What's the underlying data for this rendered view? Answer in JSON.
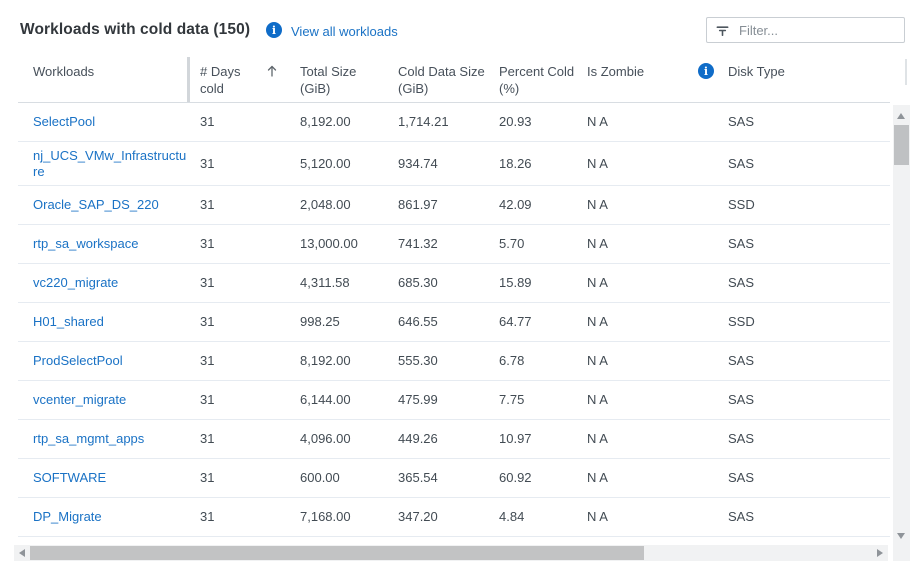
{
  "page": {
    "title": "Workloads with cold data (150)",
    "title_info_icon": "info-icon",
    "view_all_link": "View all workloads",
    "filter": {
      "placeholder": "Filter...",
      "icon": "filter-funnel-icon"
    }
  },
  "table": {
    "columns": [
      {
        "id": "workloads",
        "label": "Workloads"
      },
      {
        "id": "days_cold",
        "label": "# Days cold",
        "sorted": "ascending",
        "sort_icon": "arrow-up-icon"
      },
      {
        "id": "total_size",
        "label": "Total Size (GiB)"
      },
      {
        "id": "cold_data_size",
        "label": "Cold Data Size (GiB)"
      },
      {
        "id": "percent_cold",
        "label": "Percent Cold (%)"
      },
      {
        "id": "is_zombie",
        "label": "Is Zombie",
        "info_icon": "info-icon"
      },
      {
        "id": "disk_type",
        "label": "Disk Type"
      }
    ],
    "rows": [
      {
        "workload": "SelectPool",
        "days_cold": "31",
        "total_size": "8,192.00",
        "cold_data_size": "1,714.21",
        "percent_cold": "20.93",
        "is_zombie": "N A",
        "disk_type": "SAS"
      },
      {
        "workload": "nj_UCS_VMw_Infrastructure",
        "days_cold": "31",
        "total_size": "5,120.00",
        "cold_data_size": "934.74",
        "percent_cold": "18.26",
        "is_zombie": "N A",
        "disk_type": "SAS"
      },
      {
        "workload": "Oracle_SAP_DS_220",
        "days_cold": "31",
        "total_size": "2,048.00",
        "cold_data_size": "861.97",
        "percent_cold": "42.09",
        "is_zombie": "N A",
        "disk_type": "SSD"
      },
      {
        "workload": "rtp_sa_workspace",
        "days_cold": "31",
        "total_size": "13,000.00",
        "cold_data_size": "741.32",
        "percent_cold": "5.70",
        "is_zombie": "N A",
        "disk_type": "SAS"
      },
      {
        "workload": "vc220_migrate",
        "days_cold": "31",
        "total_size": "4,311.58",
        "cold_data_size": "685.30",
        "percent_cold": "15.89",
        "is_zombie": "N A",
        "disk_type": "SAS"
      },
      {
        "workload": "H01_shared",
        "days_cold": "31",
        "total_size": "998.25",
        "cold_data_size": "646.55",
        "percent_cold": "64.77",
        "is_zombie": "N A",
        "disk_type": "SSD"
      },
      {
        "workload": "ProdSelectPool",
        "days_cold": "31",
        "total_size": "8,192.00",
        "cold_data_size": "555.30",
        "percent_cold": "6.78",
        "is_zombie": "N A",
        "disk_type": "SAS"
      },
      {
        "workload": "vcenter_migrate",
        "days_cold": "31",
        "total_size": "6,144.00",
        "cold_data_size": "475.99",
        "percent_cold": "7.75",
        "is_zombie": "N A",
        "disk_type": "SAS"
      },
      {
        "workload": "rtp_sa_mgmt_apps",
        "days_cold": "31",
        "total_size": "4,096.00",
        "cold_data_size": "449.26",
        "percent_cold": "10.97",
        "is_zombie": "N A",
        "disk_type": "SAS"
      },
      {
        "workload": "SOFTWARE",
        "days_cold": "31",
        "total_size": "600.00",
        "cold_data_size": "365.54",
        "percent_cold": "60.92",
        "is_zombie": "N A",
        "disk_type": "SAS"
      },
      {
        "workload": "DP_Migrate",
        "days_cold": "31",
        "total_size": "7,168.00",
        "cold_data_size": "347.20",
        "percent_cold": "4.84",
        "is_zombie": "N A",
        "disk_type": "SAS"
      }
    ]
  },
  "colors": {
    "link_blue": "#1a72c5",
    "info_icon_blue": "#0f6cc8",
    "header_text": "#47505a",
    "body_text": "#424b53",
    "row_border": "#e6ebf1"
  }
}
